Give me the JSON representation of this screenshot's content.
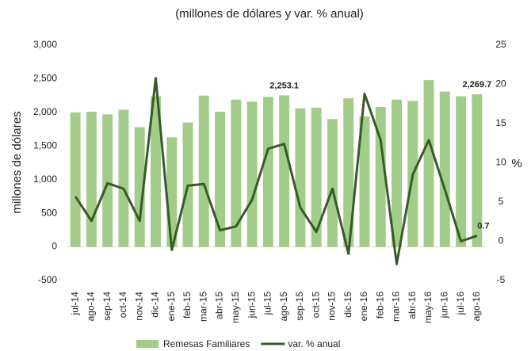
{
  "chart_data": {
    "type": "bar-line",
    "subtitle": "(millones de dólares y var. % anual)",
    "y_label": "millones de dólares",
    "y2_label": "%",
    "categories": [
      "jul-14",
      "ago-14",
      "sep-14",
      "oct-14",
      "nov-14",
      "dic-14",
      "ene-15",
      "feb-15",
      "mar-15",
      "abr-15",
      "may-15",
      "jun-15",
      "jul-15",
      "ago-15",
      "sep-15",
      "oct-15",
      "nov-15",
      "dic-15",
      "ene-16",
      "feb-16",
      "mar-16",
      "abr-16",
      "may-16",
      "jun-16",
      "jul-16",
      "ago-16"
    ],
    "ylim": [
      -500,
      3000
    ],
    "yticks": [
      {
        "value": -500,
        "label": "-500"
      },
      0,
      500,
      {
        "value": 1000,
        "label": "1,000"
      },
      {
        "value": 1500,
        "label": "1,500"
      },
      {
        "value": 2000,
        "label": "2,000"
      },
      {
        "value": 2500,
        "label": "2,500"
      },
      {
        "value": 3000,
        "label": "3,000"
      }
    ],
    "y2lim": [
      -5,
      25
    ],
    "y2ticks": [
      -5,
      0,
      5,
      10,
      15,
      20,
      25
    ],
    "legend": "bottom",
    "series": [
      {
        "name": "Remesas Familiares",
        "kind": "bar",
        "color": "#a3cc8a",
        "values": [
          2000,
          2010,
          1970,
          2040,
          1780,
          2240,
          1630,
          1850,
          2250,
          2010,
          2190,
          2160,
          2230,
          2253.1,
          2060,
          2070,
          1900,
          2210,
          1940,
          2080,
          2190,
          2170,
          2480,
          2310,
          2240,
          2269.7
        ],
        "value_labels": [
          null,
          null,
          null,
          null,
          null,
          null,
          null,
          null,
          null,
          null,
          null,
          null,
          null,
          "2,253.1",
          null,
          null,
          null,
          null,
          null,
          null,
          null,
          null,
          null,
          null,
          null,
          "2,269.7"
        ]
      },
      {
        "name": "var. % anual",
        "kind": "line",
        "axis": "y2",
        "color": "#385a28",
        "values": [
          5.7,
          2.6,
          7.4,
          6.7,
          2.6,
          20.8,
          -1.1,
          7.1,
          7.3,
          1.4,
          1.9,
          5.3,
          11.8,
          12.4,
          4.3,
          1.2,
          6.7,
          -1.6,
          18.8,
          12.9,
          -2.9,
          8.5,
          12.9,
          6.6,
          0.0,
          0.7
        ],
        "value_labels": [
          null,
          null,
          null,
          null,
          null,
          null,
          null,
          null,
          null,
          null,
          null,
          null,
          null,
          null,
          null,
          null,
          null,
          null,
          null,
          null,
          null,
          null,
          null,
          null,
          null,
          "0.7"
        ]
      }
    ]
  }
}
